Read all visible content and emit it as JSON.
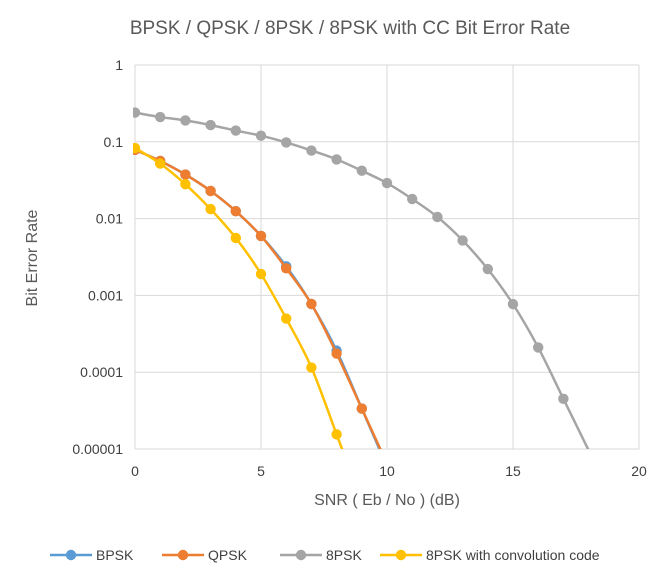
{
  "chart_data": {
    "type": "line",
    "title": "BPSK / QPSK / 8PSK / 8PSK with CC Bit Error Rate",
    "xlabel": "SNR ( Eb / No ) (dB)",
    "ylabel": "Bit Error Rate",
    "xlim": [
      0,
      20
    ],
    "ylim": [
      1e-05,
      1
    ],
    "yscale": "log",
    "grid": true,
    "legend_position": "bottom",
    "x_ticks": [
      "0",
      "5",
      "10",
      "15",
      "20"
    ],
    "y_ticks": [
      "1",
      "0.1",
      "0.01",
      "0.001",
      "0.0001",
      "0.00001"
    ],
    "series": [
      {
        "name": "BPSK",
        "color": "#5b9bd5",
        "x": [
          0,
          1,
          2,
          3,
          4,
          5,
          6,
          7,
          8,
          9
        ],
        "y": [
          0.0786,
          0.0563,
          0.0375,
          0.0229,
          0.0125,
          0.00595,
          0.00239,
          0.000773,
          0.000191,
          3.36e-05
        ]
      },
      {
        "name": "QPSK",
        "color": "#ed7d31",
        "x": [
          0,
          1,
          2,
          3,
          4,
          5,
          6,
          7,
          8,
          9
        ],
        "y": [
          0.0786,
          0.0563,
          0.0375,
          0.0229,
          0.0125,
          0.00595,
          0.00225,
          0.000773,
          0.000175,
          3.36e-05
        ]
      },
      {
        "name": "8PSK",
        "color": "#a5a5a5",
        "x": [
          0,
          1,
          2,
          3,
          4,
          5,
          6,
          7,
          8,
          9,
          10,
          11,
          12,
          13,
          14,
          15,
          16,
          17
        ],
        "y": [
          0.24,
          0.21,
          0.19,
          0.165,
          0.14,
          0.12,
          0.098,
          0.077,
          0.059,
          0.042,
          0.029,
          0.018,
          0.0105,
          0.0052,
          0.0022,
          0.00077,
          0.00021,
          4.5e-05
        ]
      },
      {
        "name": "8PSK with convolution code",
        "color": "#ffc000",
        "x": [
          0,
          1,
          2,
          3,
          4,
          5,
          6,
          7,
          8
        ],
        "y": [
          0.083,
          0.052,
          0.028,
          0.0133,
          0.0056,
          0.0019,
          0.0005,
          0.000115,
          1.55e-05
        ]
      }
    ]
  }
}
